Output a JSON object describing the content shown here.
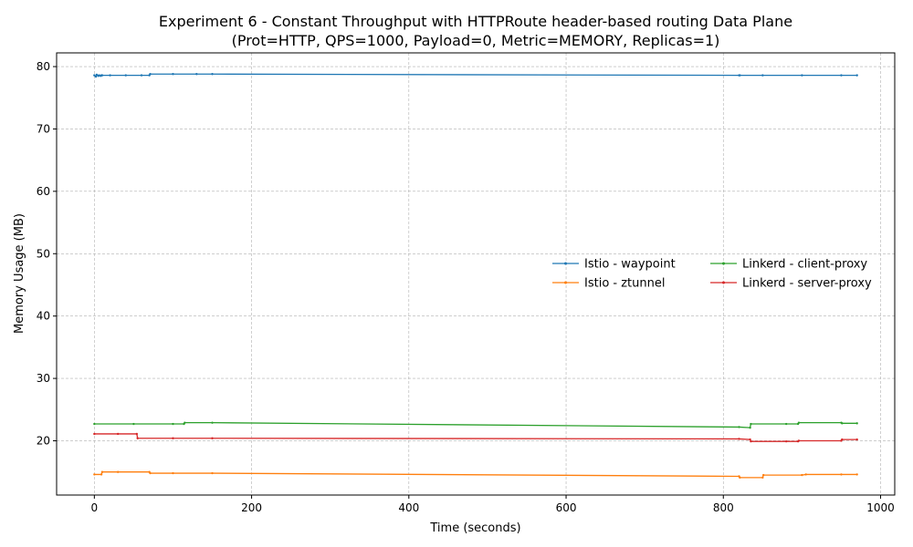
{
  "chart_data": {
    "type": "line",
    "title": "Experiment 6 - Constant Throughput with HTTPRoute header-based routing Data Plane",
    "subtitle": "(Prot=HTTP, QPS=1000, Payload=0, Metric=MEMORY, Replicas=1)",
    "xlabel": "Time (seconds)",
    "ylabel": "Memory Usage (MB)",
    "xlim": [
      -48,
      1018
    ],
    "ylim": [
      11.3,
      82.2
    ],
    "xticks": [
      0,
      200,
      400,
      600,
      800,
      1000
    ],
    "yticks": [
      20,
      30,
      40,
      50,
      60,
      70,
      80
    ],
    "grid": true,
    "legend_position": "center-right",
    "series": [
      {
        "name": "Istio - waypoint",
        "color": "#1f77b4",
        "x": [
          0,
          2,
          3,
          5,
          6,
          8,
          9,
          10,
          20,
          40,
          60,
          70,
          71,
          100,
          130,
          150,
          820,
          821,
          850,
          900,
          950,
          970
        ],
        "y": [
          78.6,
          78.4,
          78.7,
          78.5,
          78.6,
          78.5,
          78.6,
          78.6,
          78.6,
          78.6,
          78.6,
          78.6,
          78.8,
          78.8,
          78.8,
          78.8,
          78.6,
          78.6,
          78.6,
          78.6,
          78.6,
          78.6
        ]
      },
      {
        "name": "Istio - ztunnel",
        "color": "#ff7f0e",
        "x": [
          0,
          9,
          10,
          30,
          70,
          71,
          100,
          150,
          820,
          821,
          850,
          851,
          900,
          905,
          950,
          970
        ],
        "y": [
          14.6,
          14.6,
          15.0,
          15.0,
          15.0,
          14.8,
          14.8,
          14.8,
          14.3,
          14.1,
          14.1,
          14.5,
          14.5,
          14.6,
          14.6,
          14.6
        ]
      },
      {
        "name": "Linkerd - client-proxy",
        "color": "#2ca02c",
        "x": [
          0,
          50,
          100,
          114,
          115,
          150,
          820,
          834,
          835,
          880,
          895,
          896,
          950,
          951,
          970
        ],
        "y": [
          22.7,
          22.7,
          22.7,
          22.7,
          22.9,
          22.9,
          22.2,
          22.1,
          22.7,
          22.7,
          22.7,
          22.9,
          22.9,
          22.8,
          22.8
        ]
      },
      {
        "name": "Linkerd - server-proxy",
        "color": "#d62728",
        "x": [
          0,
          30,
          54,
          55,
          100,
          150,
          820,
          834,
          835,
          880,
          895,
          896,
          950,
          951,
          970
        ],
        "y": [
          21.1,
          21.1,
          21.1,
          20.4,
          20.4,
          20.4,
          20.3,
          20.2,
          19.9,
          19.9,
          19.9,
          20.0,
          20.0,
          20.2,
          20.2
        ]
      }
    ]
  }
}
